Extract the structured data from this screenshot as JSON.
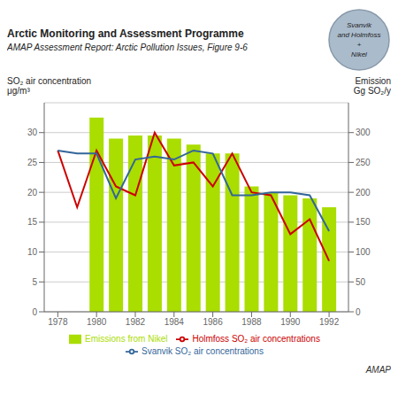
{
  "chart_data": {
    "type": "bar",
    "title": "Arctic Monitoring and Assessment Programme",
    "subtitle": "AMAP Assessment Report: Arctic Pollution Issues, Figure 9‑6",
    "ylabel": "SO₂ air concentration\nμg/m³",
    "y2label": "Emission\nGg SO₂/y",
    "x": [
      1978,
      1979,
      1980,
      1981,
      1982,
      1983,
      1984,
      1985,
      1986,
      1987,
      1988,
      1989,
      1990,
      1991,
      1992
    ],
    "xlim": [
      1977.3,
      1993.0
    ],
    "xticks": [
      1978,
      1980,
      1982,
      1984,
      1986,
      1988,
      1990,
      1992
    ],
    "ylim": [
      0,
      35
    ],
    "yticks": [
      0,
      5,
      10,
      15,
      20,
      25,
      30
    ],
    "y2lim": [
      0,
      350
    ],
    "y2ticks": [
      0,
      50,
      100,
      150,
      200,
      250,
      300
    ],
    "grid": true,
    "legend": "bottom",
    "series": [
      {
        "name": "Emissions from Nikel",
        "type": "bar",
        "axis": "y2",
        "color": "#aadd00",
        "values": [
          null,
          0,
          325,
          290,
          295,
          295,
          290,
          280,
          265,
          265,
          210,
          200,
          195,
          190,
          175
        ]
      },
      {
        "name": "Holmfoss SO₂ air concentrations",
        "type": "line",
        "color": "#cc0000",
        "values": [
          27,
          17.5,
          27,
          21,
          19.5,
          30,
          24.5,
          25,
          21,
          26.5,
          20,
          19.5,
          13,
          15.5,
          8.5
        ]
      },
      {
        "name": "Svanvik SO₂ air concentrations",
        "type": "line",
        "color": "#336699",
        "values": [
          27,
          26.5,
          26.5,
          19,
          25.5,
          26,
          25.5,
          27,
          26.5,
          19.5,
          19.5,
          20,
          20,
          19.5,
          13.5
        ]
      }
    ],
    "annotations": [
      "Svanvik",
      "and Holmfoss",
      "+",
      "Nikel",
      "AMAP"
    ]
  }
}
